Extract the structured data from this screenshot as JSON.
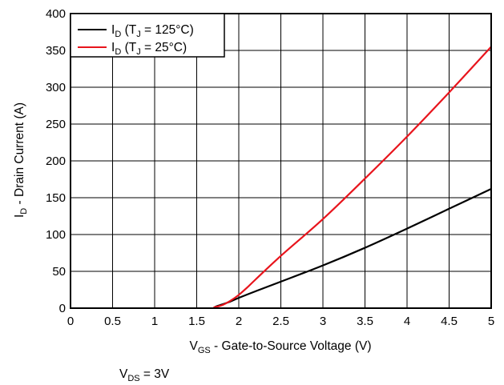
{
  "chart_data": {
    "type": "line",
    "xlabel_main": "V",
    "xlabel_sub": "GS",
    "xlabel_rest": " - Gate-to-Source Voltage (V)",
    "ylabel_main": "I",
    "ylabel_sub": "D",
    "ylabel_rest": " - Drain Current (A)",
    "xlim": [
      0,
      5
    ],
    "ylim": [
      0,
      400
    ],
    "xticks": [
      "0",
      "0.5",
      "1",
      "1.5",
      "2",
      "2.5",
      "3",
      "3.5",
      "4",
      "4.5",
      "5"
    ],
    "yticks": [
      "0",
      "50",
      "100",
      "150",
      "200",
      "250",
      "300",
      "350",
      "400"
    ],
    "grid": true,
    "legend_position": "top-left",
    "series": [
      {
        "name_main": "I",
        "name_sub": "D",
        "name_mid": " (T",
        "name_sub2": "J",
        "name_rest": " = 125°C)",
        "color": "#000000",
        "x": [
          1.72,
          1.8,
          1.9,
          2.0,
          2.2,
          2.5,
          3.0,
          3.5,
          4.0,
          4.5,
          5.0
        ],
        "y": [
          2,
          5,
          9,
          14,
          23,
          36,
          58,
          82,
          108,
          135,
          162
        ]
      },
      {
        "name_main": "I",
        "name_sub": "D",
        "name_mid": " (T",
        "name_sub2": "J",
        "name_rest": " = 25°C)",
        "color": "#e8141c",
        "x": [
          1.7,
          1.8,
          1.9,
          2.0,
          2.1,
          2.2,
          2.5,
          3.0,
          3.5,
          4.0,
          4.5,
          5.0
        ],
        "y": [
          1,
          4,
          10,
          18,
          28,
          39,
          71,
          121,
          176,
          233,
          293,
          355
        ]
      }
    ]
  },
  "footnote": {
    "main": "V",
    "sub": "DS",
    "rest": " = 3V"
  }
}
